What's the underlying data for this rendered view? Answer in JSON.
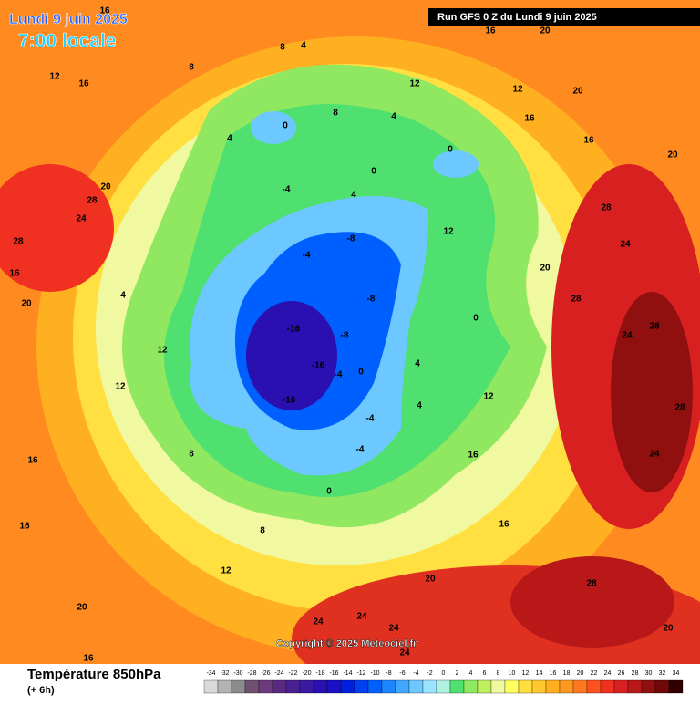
{
  "header": {
    "date": "Lundi 9 juin 2025",
    "time": "7:00 locale",
    "run": "Run GFS 0 Z du Lundi 9 juin 2025"
  },
  "footer": {
    "title": "Température 850hPa",
    "subtitle": "(+ 6h)",
    "copyright": "Copyright © 2025 Meteociel.fr"
  },
  "colorbar": {
    "ticks": [
      -34,
      -32,
      -30,
      -28,
      -26,
      -24,
      -22,
      -20,
      -18,
      -16,
      -14,
      -12,
      -10,
      -8,
      -6,
      -4,
      -2,
      0,
      2,
      4,
      6,
      8,
      10,
      12,
      14,
      16,
      18,
      20,
      22,
      24,
      26,
      28,
      30,
      32,
      34
    ],
    "colors": [
      "#d9d9d9",
      "#b3b3b3",
      "#8c8c8c",
      "#705070",
      "#6a3a7a",
      "#5a2a80",
      "#4a2090",
      "#3a1aa0",
      "#2a10b0",
      "#1a10c8",
      "#0020e0",
      "#0040f0",
      "#0060ff",
      "#1c86ff",
      "#40a8ff",
      "#6cc8ff",
      "#9ae4ff",
      "#b0f0e0",
      "#50e070",
      "#90e860",
      "#c0f060",
      "#f0f8a0",
      "#ffff60",
      "#ffe040",
      "#ffc830",
      "#ffb020",
      "#ff9820",
      "#ff7820",
      "#ff5020",
      "#f03020",
      "#d82020",
      "#b81818",
      "#901010",
      "#700808",
      "#300000"
    ]
  },
  "map": {
    "contour_labels": [
      16,
      16,
      20,
      8,
      4,
      8,
      12,
      16,
      12,
      12,
      20,
      4,
      8,
      0,
      4,
      16,
      16,
      20,
      0,
      0,
      -4,
      4,
      28,
      20,
      28,
      24,
      28,
      12,
      -8,
      -4,
      24,
      20,
      4,
      -8,
      0,
      -16,
      -8,
      28,
      28,
      24,
      12,
      -16,
      -4,
      4,
      0,
      12,
      -16,
      4,
      12,
      28,
      -4,
      16,
      8,
      24,
      16,
      -4,
      0,
      8,
      16,
      12,
      20,
      28,
      20,
      24,
      24,
      24,
      20,
      16,
      24,
      16,
      16,
      20
    ]
  }
}
